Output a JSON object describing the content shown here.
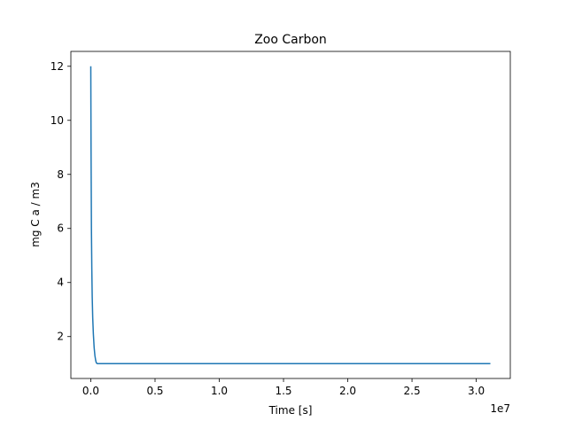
{
  "chart_data": {
    "type": "line",
    "title": "Zoo Carbon",
    "xlabel": "Time [s]",
    "ylabel": "mg C a / m3",
    "x_offset_label": "1e7",
    "xlim": [
      -1550000,
      32650000
    ],
    "ylim": [
      0.45,
      12.55
    ],
    "xticks": [
      0,
      5000000,
      10000000,
      15000000,
      20000000,
      25000000,
      30000000
    ],
    "xtick_labels": [
      "0.0",
      "0.5",
      "1.0",
      "1.5",
      "2.0",
      "2.5",
      "3.0"
    ],
    "yticks": [
      2,
      4,
      6,
      8,
      10,
      12
    ],
    "ytick_labels": [
      "2",
      "4",
      "6",
      "8",
      "10",
      "12"
    ],
    "grid": false,
    "legend": "none",
    "series": [
      {
        "color": "#1f77b4",
        "x": [
          0,
          20000,
          50000,
          80000,
          110000,
          150000,
          200000,
          260000,
          320000,
          380000,
          430000,
          500000,
          600000,
          1000000,
          5000000,
          10000000,
          15000000,
          20000000,
          25000000,
          31100000
        ],
        "y": [
          12.0,
          9.0,
          6.0,
          4.5,
          3.5,
          2.7,
          2.1,
          1.6,
          1.3,
          1.12,
          1.03,
          1.0,
          1.0,
          1.0,
          1.0,
          1.0,
          1.0,
          1.0,
          1.0,
          1.0
        ]
      }
    ]
  }
}
